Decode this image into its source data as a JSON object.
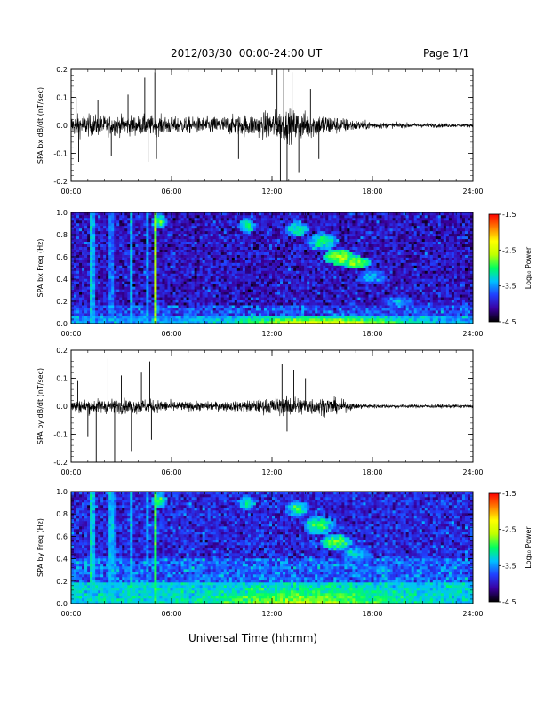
{
  "header": {
    "title": "2012/03/30  00:00-24:00 UT",
    "page": "Page 1/1"
  },
  "footer": {
    "xlabel": "Universal Time (hh:mm)"
  },
  "colors": {
    "trace": "#000000",
    "colorbar": [
      "#000000",
      "#3a00a0",
      "#2040ff",
      "#00c0ff",
      "#00ff60",
      "#c0ff00",
      "#ffff00",
      "#ff8000",
      "#ff0000"
    ]
  },
  "chart_data": [
    {
      "type": "line",
      "ylabel": "SPA bx dB/dt (nT/sec)",
      "ylim": [
        -0.2,
        0.2
      ],
      "yticks": [
        "-0.2",
        "-0.1",
        "0.0",
        "0.1",
        "0.2"
      ],
      "xticks": [
        "00:00",
        "06:00",
        "12:00",
        "18:00",
        "24:00"
      ],
      "xlim_hours": [
        0,
        24
      ],
      "envelope": {
        "hours": [
          0,
          1,
          2,
          3,
          4,
          5,
          6,
          7,
          8,
          9,
          10,
          11,
          12,
          13,
          14,
          15,
          16,
          17,
          18,
          19,
          20,
          21,
          22,
          23,
          24
        ],
        "amplitude": [
          0.06,
          0.06,
          0.055,
          0.055,
          0.055,
          0.055,
          0.05,
          0.045,
          0.045,
          0.05,
          0.055,
          0.065,
          0.08,
          0.09,
          0.075,
          0.065,
          0.045,
          0.03,
          0.02,
          0.015,
          0.015,
          0.012,
          0.012,
          0.01,
          0.01
        ]
      },
      "spikes": [
        {
          "hour": 0.3,
          "value": 0.1
        },
        {
          "hour": 0.45,
          "value": -0.13
        },
        {
          "hour": 1.6,
          "value": 0.09
        },
        {
          "hour": 2.4,
          "value": -0.11
        },
        {
          "hour": 3.4,
          "value": 0.11
        },
        {
          "hour": 4.4,
          "value": 0.17
        },
        {
          "hour": 4.6,
          "value": -0.13
        },
        {
          "hour": 5.0,
          "value": 0.19
        },
        {
          "hour": 5.1,
          "value": -0.12
        },
        {
          "hour": 10.0,
          "value": -0.12
        },
        {
          "hour": 12.3,
          "value": 0.2
        },
        {
          "hour": 12.5,
          "value": -0.2
        },
        {
          "hour": 12.7,
          "value": 0.2
        },
        {
          "hour": 12.9,
          "value": -0.2
        },
        {
          "hour": 13.2,
          "value": 0.19
        },
        {
          "hour": 13.6,
          "value": -0.17
        },
        {
          "hour": 14.3,
          "value": 0.13
        },
        {
          "hour": 14.8,
          "value": -0.12
        }
      ]
    },
    {
      "type": "heatmap",
      "ylabel": "SPA bx Freq (Hz)",
      "ylim": [
        0.0,
        1.0
      ],
      "yticks": [
        "0.0",
        "0.2",
        "0.4",
        "0.6",
        "0.8",
        "1.0"
      ],
      "xticks": [
        "00:00",
        "06:00",
        "12:00",
        "18:00",
        "24:00"
      ],
      "xlim_hours": [
        0,
        24
      ],
      "colorbar": {
        "label": "Log₁₀ Power",
        "range": [
          -4.5,
          -1.5
        ],
        "ticks": [
          "-1.5",
          "-2.5",
          "-3.5",
          "-4.5"
        ]
      },
      "background": -4.0,
      "low_freq_band": {
        "max_hz": 0.08,
        "base": -3.5,
        "peak_hour": 15,
        "peak": -2.2
      },
      "vertical_lines": [
        {
          "hour": 1.25,
          "value": -3.3
        },
        {
          "hour": 1.35,
          "value": -3.5
        },
        {
          "hour": 2.4,
          "value": -3.6
        },
        {
          "hour": 3.6,
          "value": -3.4
        },
        {
          "hour": 4.5,
          "value": -3.5
        },
        {
          "hour": 5.0,
          "value": -2.7
        },
        {
          "hour": 5.1,
          "value": -3.2
        }
      ],
      "features": [
        {
          "hour": 5.3,
          "freq": 0.92,
          "value": -3.0,
          "spread_h": 0.4,
          "spread_f": 0.06
        },
        {
          "hour": 10.5,
          "freq": 0.88,
          "value": -3.0,
          "spread_h": 0.4,
          "spread_f": 0.06
        },
        {
          "hour": 13.5,
          "freq": 0.85,
          "value": -3.0,
          "spread_h": 0.6,
          "spread_f": 0.06
        },
        {
          "hour": 15.0,
          "freq": 0.74,
          "value": -3.0,
          "spread_h": 0.8,
          "spread_f": 0.07
        },
        {
          "hour": 16.0,
          "freq": 0.6,
          "value": -2.6,
          "spread_h": 0.8,
          "spread_f": 0.06
        },
        {
          "hour": 17.0,
          "freq": 0.55,
          "value": -2.7,
          "spread_h": 0.8,
          "spread_f": 0.05
        },
        {
          "hour": 18.0,
          "freq": 0.42,
          "value": -3.3,
          "spread_h": 0.8,
          "spread_f": 0.06
        },
        {
          "hour": 19.5,
          "freq": 0.2,
          "value": -3.4,
          "spread_h": 1.0,
          "spread_f": 0.05
        }
      ]
    },
    {
      "type": "line",
      "ylabel": "SPA by dB/dt (nT/sec)",
      "ylim": [
        -0.2,
        0.2
      ],
      "yticks": [
        "-0.2",
        "-0.1",
        "0.0",
        "0.1",
        "0.2"
      ],
      "xticks": [
        "00:00",
        "06:00",
        "12:00",
        "18:00",
        "24:00"
      ],
      "xlim_hours": [
        0,
        24
      ],
      "envelope": {
        "hours": [
          0,
          1,
          2,
          3,
          4,
          5,
          6,
          7,
          8,
          9,
          10,
          11,
          12,
          13,
          14,
          15,
          16,
          17,
          18,
          19,
          20,
          21,
          22,
          23,
          24
        ],
        "amplitude": [
          0.035,
          0.04,
          0.04,
          0.04,
          0.04,
          0.035,
          0.03,
          0.025,
          0.025,
          0.025,
          0.03,
          0.035,
          0.045,
          0.055,
          0.05,
          0.05,
          0.04,
          0.015,
          0.012,
          0.01,
          0.01,
          0.01,
          0.01,
          0.01,
          0.01
        ]
      },
      "spikes": [
        {
          "hour": 0.4,
          "value": 0.09
        },
        {
          "hour": 1.0,
          "value": -0.11
        },
        {
          "hour": 1.5,
          "value": -0.2
        },
        {
          "hour": 2.2,
          "value": 0.17
        },
        {
          "hour": 2.6,
          "value": -0.2
        },
        {
          "hour": 3.0,
          "value": 0.11
        },
        {
          "hour": 3.6,
          "value": -0.16
        },
        {
          "hour": 4.2,
          "value": 0.12
        },
        {
          "hour": 4.7,
          "value": 0.16
        },
        {
          "hour": 4.8,
          "value": -0.12
        },
        {
          "hour": 12.6,
          "value": 0.15
        },
        {
          "hour": 12.9,
          "value": -0.09
        },
        {
          "hour": 13.3,
          "value": 0.13
        },
        {
          "hour": 14.0,
          "value": 0.1
        }
      ]
    },
    {
      "type": "heatmap",
      "ylabel": "SPA by Freq (Hz)",
      "ylim": [
        0.0,
        1.0
      ],
      "yticks": [
        "0.0",
        "0.2",
        "0.4",
        "0.6",
        "0.8",
        "1.0"
      ],
      "xticks": [
        "00:00",
        "06:00",
        "12:00",
        "18:00",
        "24:00"
      ],
      "xlim_hours": [
        0,
        24
      ],
      "colorbar": {
        "label": "Log₁₀ Power",
        "range": [
          -4.5,
          -1.5
        ],
        "ticks": [
          "-1.5",
          "-2.5",
          "-3.5",
          "-4.5"
        ]
      },
      "background": -3.9,
      "low_freq_band": {
        "max_hz": 0.18,
        "base": -3.3,
        "peak_hour": 14,
        "peak": -2.6
      },
      "vertical_lines": [
        {
          "hour": 1.25,
          "value": -3.2
        },
        {
          "hour": 1.35,
          "value": -3.4
        },
        {
          "hour": 2.4,
          "value": -3.4
        },
        {
          "hour": 2.7,
          "value": -3.6
        },
        {
          "hour": 3.6,
          "value": -3.4
        },
        {
          "hour": 4.5,
          "value": -3.5
        },
        {
          "hour": 5.0,
          "value": -2.9
        },
        {
          "hour": 5.1,
          "value": -3.2
        }
      ],
      "features": [
        {
          "hour": 5.3,
          "freq": 0.92,
          "value": -3.0,
          "spread_h": 0.4,
          "spread_f": 0.06
        },
        {
          "hour": 10.5,
          "freq": 0.9,
          "value": -3.0,
          "spread_h": 0.4,
          "spread_f": 0.06
        },
        {
          "hour": 13.5,
          "freq": 0.85,
          "value": -3.0,
          "spread_h": 0.6,
          "spread_f": 0.06
        },
        {
          "hour": 14.8,
          "freq": 0.7,
          "value": -2.9,
          "spread_h": 0.8,
          "spread_f": 0.07
        },
        {
          "hour": 15.8,
          "freq": 0.55,
          "value": -2.8,
          "spread_h": 0.8,
          "spread_f": 0.06
        },
        {
          "hour": 17.0,
          "freq": 0.45,
          "value": -3.2,
          "spread_h": 0.8,
          "spread_f": 0.06
        },
        {
          "hour": 18.5,
          "freq": 0.3,
          "value": -3.4,
          "spread_h": 0.8,
          "spread_f": 0.05
        },
        {
          "hour": 20.5,
          "freq": 0.12,
          "value": -3.5,
          "spread_h": 1.0,
          "spread_f": 0.04
        }
      ]
    }
  ]
}
